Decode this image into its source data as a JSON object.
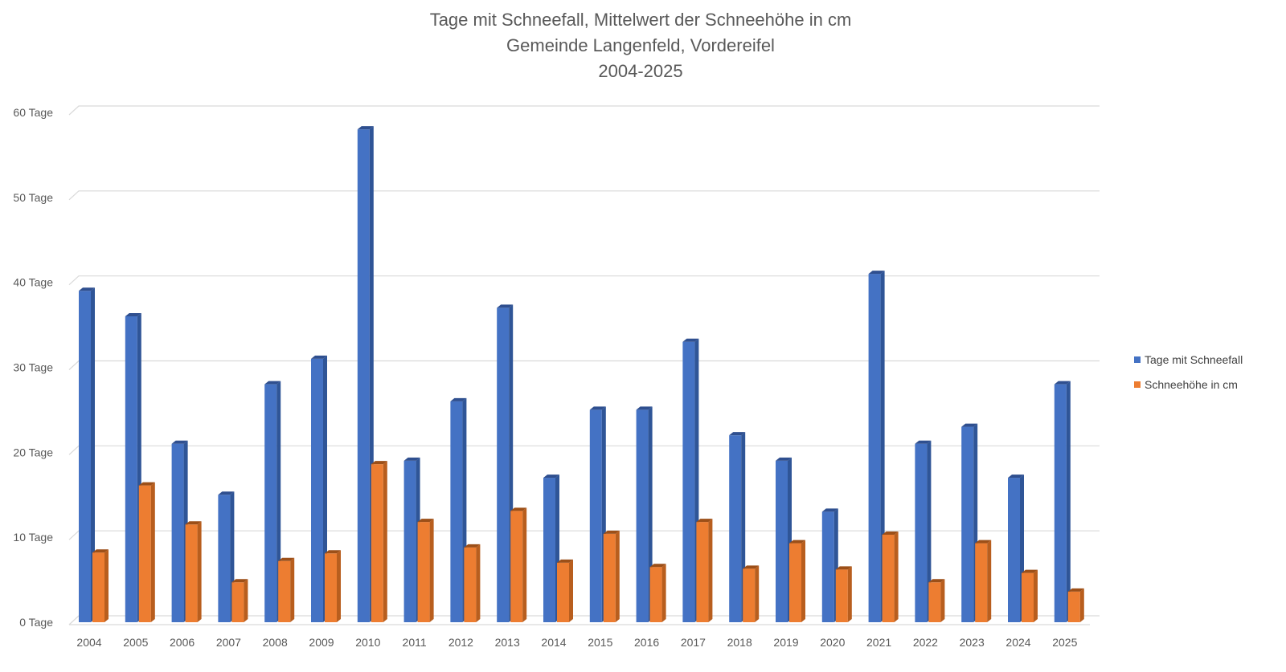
{
  "chart_data": {
    "type": "bar",
    "title": [
      "Tage mit Schneefall, Mittelwert der Schneehöhe in cm",
      "Gemeinde Langenfeld, Vordereifel",
      "2004-2025"
    ],
    "categories": [
      "2004",
      "2005",
      "2006",
      "2007",
      "2008",
      "2009",
      "2010",
      "2011",
      "2012",
      "2013",
      "2014",
      "2015",
      "2016",
      "2017",
      "2018",
      "2019",
      "2020",
      "2021",
      "2022",
      "2023",
      "2024",
      "2025"
    ],
    "series": [
      {
        "name": "Tage mit Schneefall",
        "color": "#4472C4",
        "side_color": "#2F5597",
        "top_color": "#2F4F8F",
        "values": [
          39,
          36,
          21,
          15,
          28,
          31,
          58,
          19,
          26,
          37,
          17,
          25,
          25,
          33,
          22,
          19,
          13,
          41,
          21,
          23,
          17,
          28
        ]
      },
      {
        "name": "Schneehöhe in cm",
        "color": "#ED7D31",
        "side_color": "#B85E1E",
        "top_color": "#9C4F18",
        "values": [
          8.2,
          16.1,
          11.5,
          4.7,
          7.2,
          8.1,
          18.6,
          11.8,
          8.8,
          13.1,
          7.0,
          10.4,
          6.5,
          11.8,
          6.3,
          9.3,
          6.2,
          10.3,
          4.7,
          9.3,
          5.8,
          3.6
        ]
      }
    ],
    "y_ticks": [
      "0 Tage",
      "10 Tage",
      "20 Tage",
      "30 Tage",
      "40 Tage",
      "50 Tage",
      "60 Tage"
    ],
    "ylim": [
      0,
      60
    ],
    "grid": true,
    "legend": "right"
  }
}
